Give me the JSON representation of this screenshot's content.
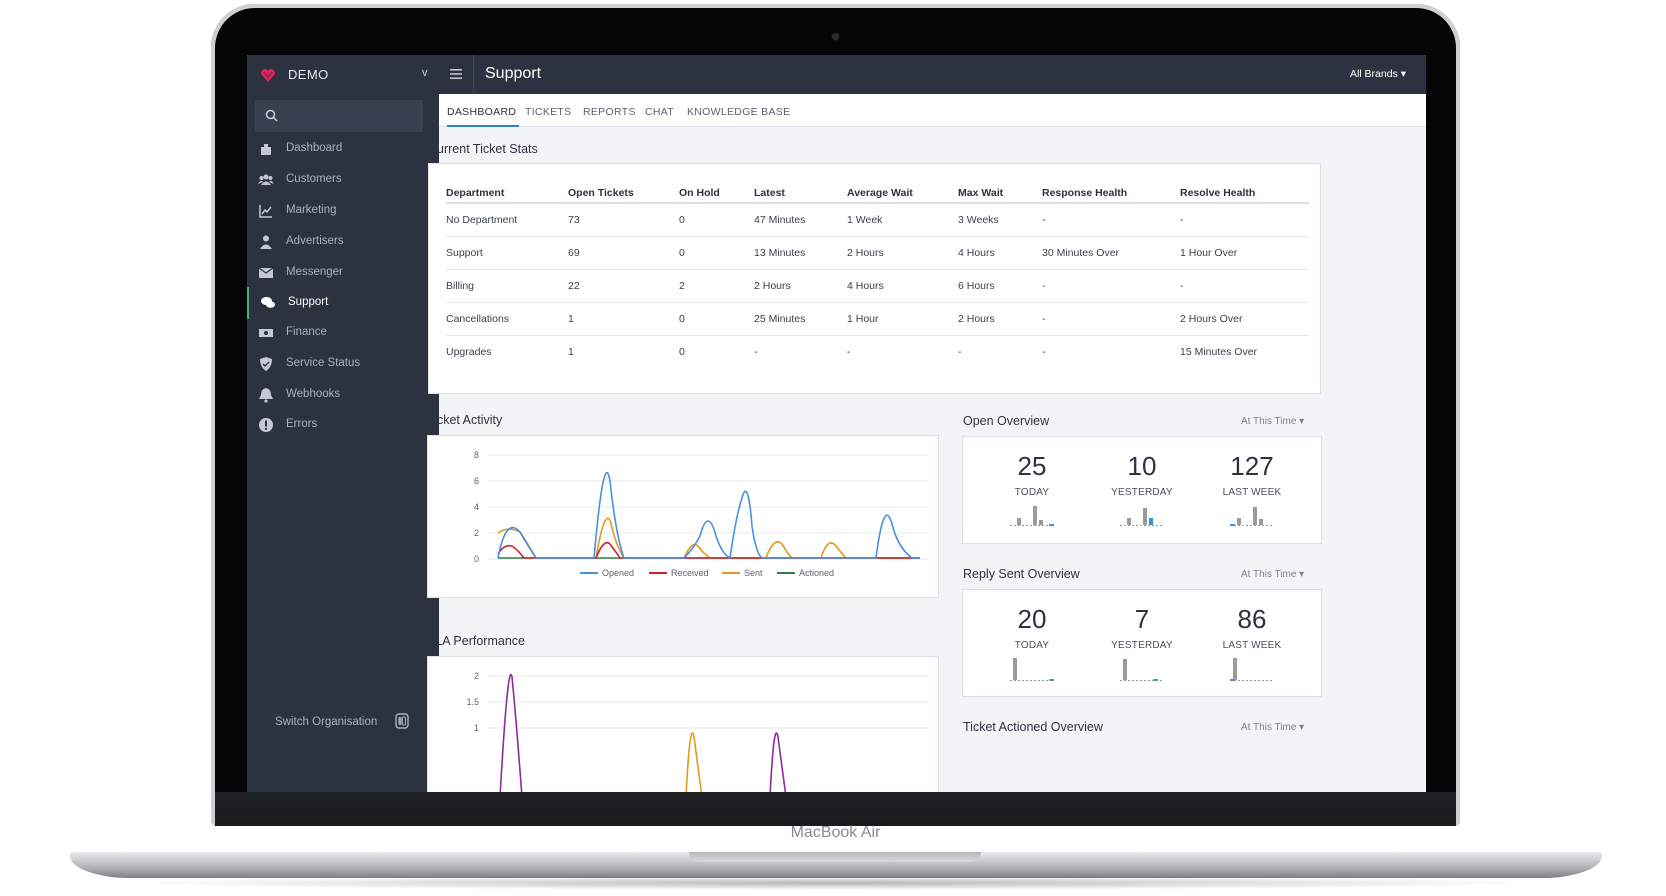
{
  "device": {
    "label": "MacBook Air"
  },
  "sidebar": {
    "brand": "DEMO",
    "brand_caret": "v",
    "items": [
      {
        "label": "Dashboard",
        "icon": "dashboard-icon",
        "active": false
      },
      {
        "label": "Customers",
        "icon": "users-icon",
        "active": false
      },
      {
        "label": "Marketing",
        "icon": "chart-line-icon",
        "active": false
      },
      {
        "label": "Advertisers",
        "icon": "user-tie-icon",
        "active": false
      },
      {
        "label": "Messenger",
        "icon": "envelope-icon",
        "active": false
      },
      {
        "label": "Support",
        "icon": "comments-icon",
        "active": true
      },
      {
        "label": "Finance",
        "icon": "money-icon",
        "active": false
      },
      {
        "label": "Service Status",
        "icon": "shield-icon",
        "active": false
      },
      {
        "label": "Webhooks",
        "icon": "bell-icon",
        "active": false
      },
      {
        "label": "Errors",
        "icon": "exclamation-circle-icon",
        "active": false
      }
    ],
    "switch_org": "Switch Organisation"
  },
  "topbar": {
    "title": "Support",
    "brand_select": "All Brands ▾"
  },
  "tabs": [
    "DASHBOARD",
    "TICKETS",
    "REPORTS",
    "CHAT",
    "KNOWLEDGE BASE"
  ],
  "ticket_stats": {
    "title": "Current Ticket Stats",
    "columns": [
      "Department",
      "Open Tickets",
      "On Hold",
      "Latest",
      "Average Wait",
      "Max Wait",
      "Response Health",
      "Resolve Health"
    ],
    "rows": [
      [
        "No Department",
        "73",
        "0",
        "47 Minutes",
        "1 Week",
        "3 Weeks",
        "-",
        "-"
      ],
      [
        "Support",
        "69",
        "0",
        "13 Minutes",
        "2 Hours",
        "4 Hours",
        "30 Minutes Over",
        "1 Hour Over"
      ],
      [
        "Billing",
        "22",
        "2",
        "2 Hours",
        "4 Hours",
        "6 Hours",
        "-",
        "-"
      ],
      [
        "Cancellations",
        "1",
        "0",
        "25 Minutes",
        "1 Hour",
        "2 Hours",
        "-",
        "2 Hours Over"
      ],
      [
        "Upgrades",
        "1",
        "0",
        "-",
        "-",
        "-",
        "-",
        "15 Minutes Over"
      ]
    ]
  },
  "ticket_activity": {
    "title": "Ticket Activity",
    "chart_data": {
      "type": "line",
      "title": "",
      "xlabel": "",
      "ylabel": "",
      "ylim": [
        0,
        8
      ],
      "yticks": [
        "8",
        "6",
        "4",
        "2",
        "0"
      ],
      "legend": "bottom",
      "series": [
        {
          "name": "Opened",
          "color": "#4a8fe0"
        },
        {
          "name": "Received",
          "color": "#c8252f"
        },
        {
          "name": "Sent",
          "color": "#e19b1e"
        },
        {
          "name": "Actioned",
          "color": "#2e7d4f"
        }
      ]
    }
  },
  "sla_performance": {
    "title": "SLA Performance",
    "chart_data": {
      "type": "line",
      "yticks": [
        "2",
        "1.5",
        "1"
      ],
      "ylim": [
        0.5,
        2
      ]
    }
  },
  "open_overview": {
    "title": "Open Overview",
    "period": "At This Time ▾",
    "stats": [
      {
        "value": "25",
        "label": "TODAY"
      },
      {
        "value": "10",
        "label": "YESTERDAY"
      },
      {
        "value": "127",
        "label": "LAST WEEK"
      }
    ]
  },
  "reply_overview": {
    "title": "Reply Sent Overview",
    "period": "At This Time ▾",
    "stats": [
      {
        "value": "20",
        "label": "TODAY"
      },
      {
        "value": "7",
        "label": "YESTERDAY"
      },
      {
        "value": "86",
        "label": "LAST WEEK"
      }
    ]
  },
  "actioned_overview": {
    "title": "Ticket Actioned Overview",
    "period": "At This Time ▾"
  },
  "colors": {
    "sidebar": "#2d3240",
    "accent": "#2f7bd6",
    "active_marker": "#3cb371",
    "warning": "#a7261d",
    "link": "#2f6fba"
  }
}
